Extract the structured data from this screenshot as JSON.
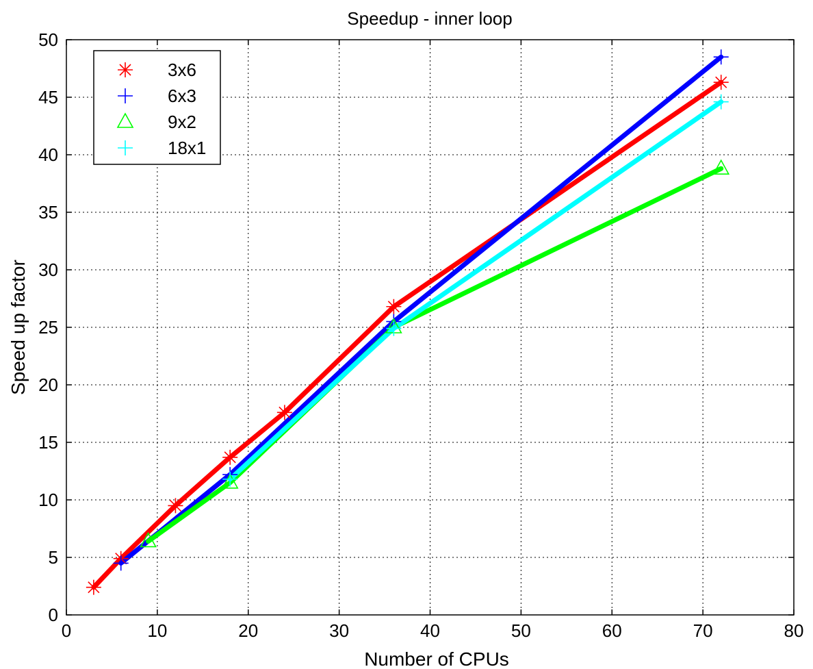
{
  "chart_data": {
    "type": "line",
    "title": "Speedup - inner loop",
    "xlabel": "Number of CPUs",
    "ylabel": "Speed up factor",
    "xlim": [
      0,
      80
    ],
    "ylim": [
      0,
      50
    ],
    "xticks": [
      0,
      10,
      20,
      30,
      40,
      50,
      60,
      70,
      80
    ],
    "yticks": [
      0,
      5,
      10,
      15,
      20,
      25,
      30,
      35,
      40,
      45,
      50
    ],
    "grid": true,
    "legend_position": "top-left",
    "series": [
      {
        "name": "3x6",
        "color": "#ff0000",
        "marker": "asterisk",
        "x": [
          3,
          6,
          12,
          18,
          24,
          36,
          72
        ],
        "y": [
          2.4,
          4.9,
          9.5,
          13.7,
          17.6,
          26.8,
          46.3
        ]
      },
      {
        "name": "6x3",
        "color": "#0000ff",
        "marker": "plus",
        "x": [
          6,
          18,
          36,
          72
        ],
        "y": [
          4.5,
          12.2,
          25.5,
          48.5
        ]
      },
      {
        "name": "9x2",
        "color": "#00ff00",
        "marker": "triangle",
        "x": [
          9,
          18,
          36,
          72
        ],
        "y": [
          6.4,
          11.5,
          25.0,
          38.8
        ]
      },
      {
        "name": "18x1",
        "color": "#00ffff",
        "marker": "plus",
        "x": [
          18,
          36,
          72
        ],
        "y": [
          11.8,
          24.9,
          44.6
        ]
      }
    ]
  }
}
